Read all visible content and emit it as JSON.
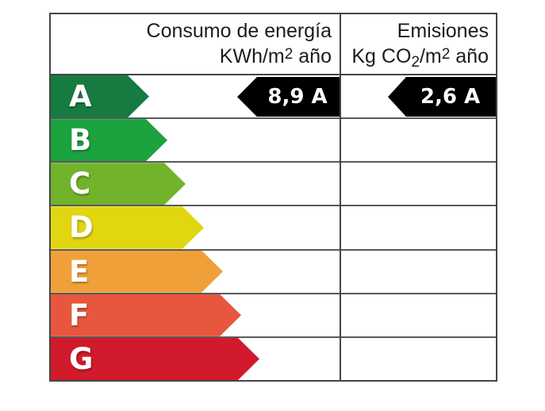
{
  "header": {
    "consumption": {
      "title": "Consumo de energía",
      "unit_pre": "KWh/m",
      "unit_sup": "2",
      "unit_post": " año"
    },
    "emissions": {
      "title": "Emisiones",
      "unit_pre": "Kg CO",
      "unit_sub": "2",
      "unit_mid": "/m",
      "unit_sup": "2",
      "unit_post": " año"
    }
  },
  "scale": {
    "ratings": [
      {
        "letter": "A",
        "color": "#177a40"
      },
      {
        "letter": "B",
        "color": "#1ca23e"
      },
      {
        "letter": "C",
        "color": "#72b32c"
      },
      {
        "letter": "D",
        "color": "#e1d60f"
      },
      {
        "letter": "E",
        "color": "#f0a039"
      },
      {
        "letter": "F",
        "color": "#e9563e"
      },
      {
        "letter": "G",
        "color": "#d11a2b"
      }
    ]
  },
  "badges": {
    "consumption_value": "8,9 A",
    "emissions_value": "2,6 A",
    "background": "#000000",
    "text_color": "#ffffff"
  },
  "chart_data": {
    "type": "table",
    "columns": [
      "Consumo de energía KWh/m2 año",
      "Emisiones Kg CO2/m2 año"
    ],
    "rating_scale": [
      "A",
      "B",
      "C",
      "D",
      "E",
      "F",
      "G"
    ],
    "assigned_rating": "A",
    "values": {
      "consumo_energia_kwh_m2_ano": 8.9,
      "emisiones_kg_co2_m2_ano": 2.6
    },
    "scale_colors": {
      "A": "#177a40",
      "B": "#1ca23e",
      "C": "#72b32c",
      "D": "#e1d60f",
      "E": "#f0a039",
      "F": "#e9563e",
      "G": "#d11a2b"
    },
    "layout_hints": {
      "arrow_direction": "right",
      "value_badge_direction": "left",
      "grid": "on"
    }
  }
}
